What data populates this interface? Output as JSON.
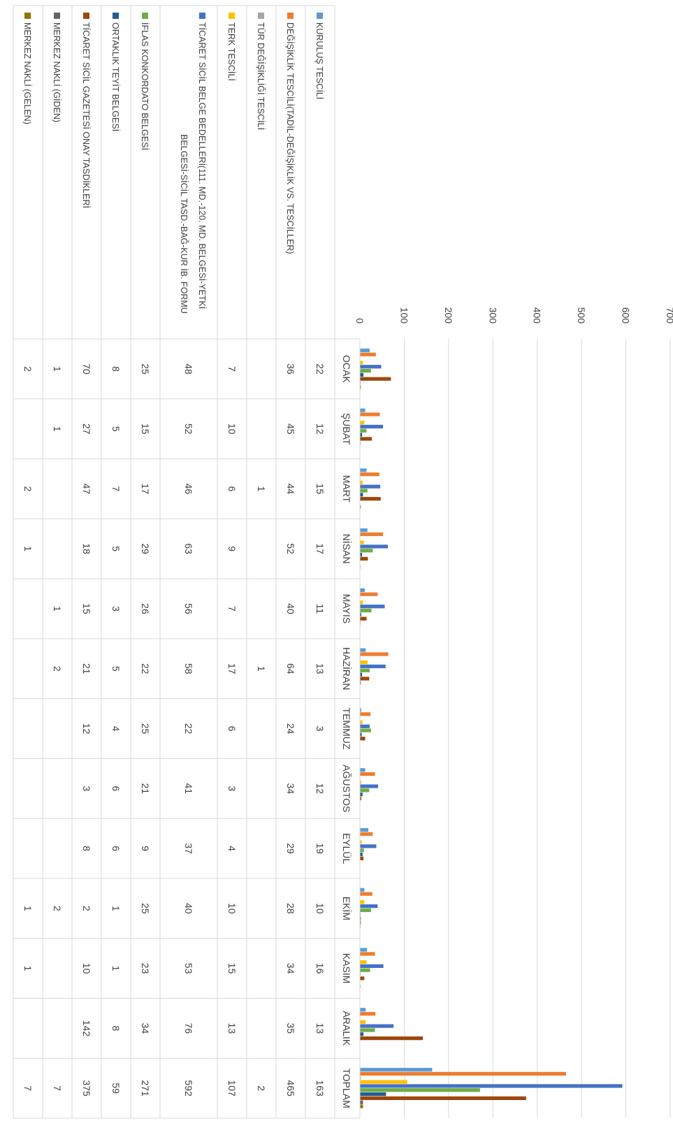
{
  "chart_data": {
    "type": "bar",
    "orientation": "rotated-90-clockwise",
    "title": "",
    "xlabel": "",
    "ylabel": "",
    "ylim": [
      0,
      700
    ],
    "yticks": [
      0,
      100,
      200,
      300,
      400,
      500,
      600,
      700
    ],
    "grid": true,
    "legend": "data-table",
    "categories": [
      "OCAK",
      "ŞUBAT",
      "MART",
      "NİSAN",
      "MAYIS",
      "HAZİRAN",
      "TEMMUZ",
      "AĞUSTOS",
      "EYLÜL",
      "EKİM",
      "KASIM",
      "ARALIK",
      "TOPLAM"
    ],
    "series": [
      {
        "name": "KURULUŞ TESCİLİ",
        "color": "#5b9bd5",
        "values": [
          22,
          12,
          15,
          17,
          11,
          13,
          3,
          12,
          19,
          10,
          16,
          13,
          163
        ]
      },
      {
        "name": "DEĞİŞİKLİK TESCİLİ(TADİL-DEĞİŞİKLİK VS. TESCİLLER)",
        "color": "#ed7d31",
        "values": [
          36,
          45,
          44,
          52,
          40,
          64,
          24,
          34,
          29,
          28,
          34,
          35,
          465
        ]
      },
      {
        "name": "TÜR DEĞİŞİKLİĞİ TESCİLİ",
        "color": "#a5a5a5",
        "values": [
          null,
          null,
          1,
          null,
          null,
          1,
          null,
          null,
          null,
          null,
          null,
          null,
          2
        ]
      },
      {
        "name": "TERK TESCİLİ",
        "color": "#ffc000",
        "values": [
          7,
          10,
          6,
          9,
          7,
          17,
          6,
          3,
          4,
          10,
          15,
          13,
          107
        ]
      },
      {
        "name": "TİCARET SİCİL BELGE BEDELLERİ(111. MD.-120. MD. BELGESİ-YETKİ BELGESİ-SİCİL TASD.-BAĞ-KUR İB. FORMU",
        "color": "#4472c4",
        "values": [
          48,
          52,
          46,
          63,
          56,
          58,
          22,
          41,
          37,
          40,
          53,
          76,
          592
        ]
      },
      {
        "name": "İFLAS KONKORDATO BELGESİ",
        "color": "#70ad47",
        "values": [
          25,
          15,
          17,
          29,
          26,
          22,
          25,
          21,
          9,
          25,
          23,
          34,
          271
        ]
      },
      {
        "name": "ORTAKLIK TEYİT BELGESİ",
        "color": "#255e91",
        "values": [
          8,
          5,
          7,
          5,
          3,
          5,
          4,
          6,
          6,
          1,
          1,
          8,
          59
        ]
      },
      {
        "name": "TİCARET SİCİL GAZETESİ ONAY TASDİKLERİ",
        "color": "#9e480e",
        "values": [
          70,
          27,
          47,
          18,
          15,
          21,
          12,
          3,
          8,
          2,
          10,
          142,
          375
        ]
      },
      {
        "name": "MERKEZ NAKLİ (GİDEN)",
        "color": "#636363",
        "values": [
          1,
          1,
          null,
          null,
          1,
          2,
          null,
          null,
          null,
          2,
          null,
          null,
          7
        ]
      },
      {
        "name": "MERKEZ NAKLİ (GELEN)",
        "color": "#997300",
        "values": [
          2,
          null,
          2,
          1,
          null,
          null,
          null,
          null,
          null,
          1,
          1,
          null,
          7
        ]
      }
    ]
  }
}
